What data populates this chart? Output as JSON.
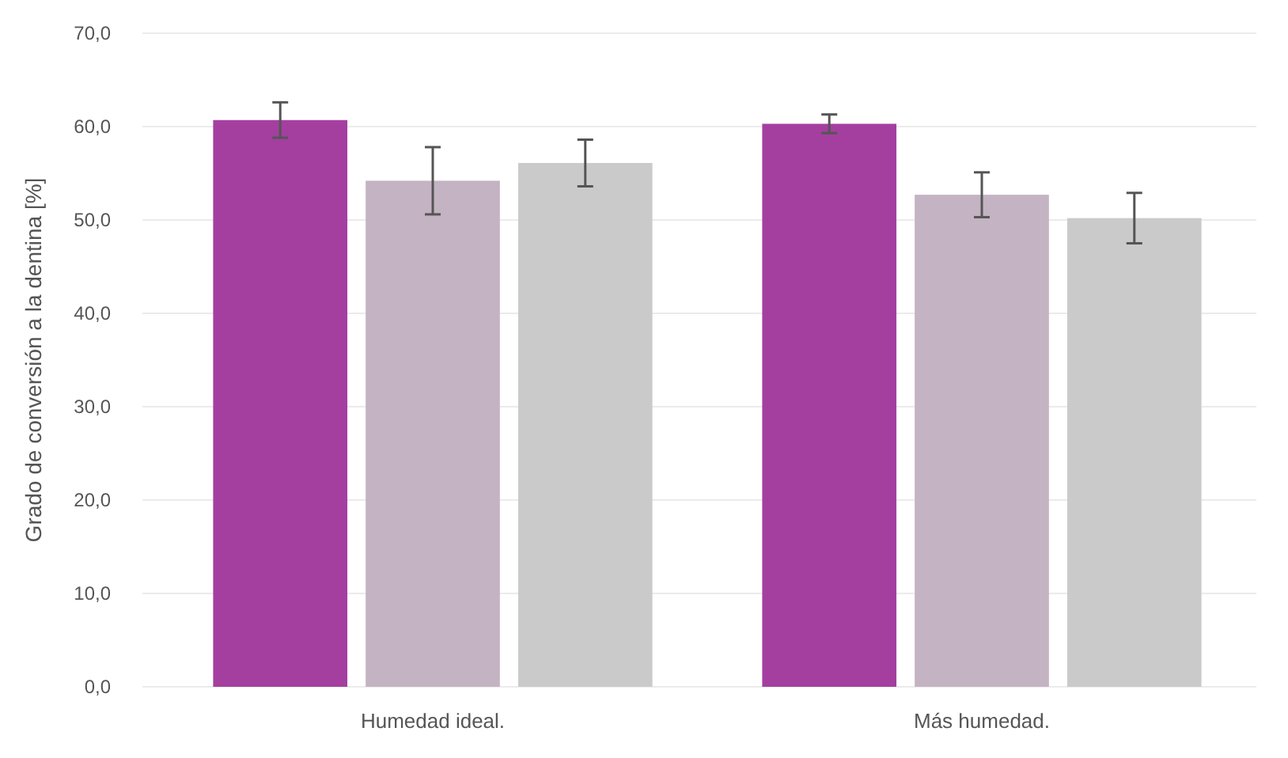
{
  "chart_data": {
    "type": "bar",
    "ylabel": "Grado de conversión a la dentina [%]",
    "categories": [
      "Humedad ideal.",
      "Más humedad."
    ],
    "series": [
      {
        "color": "#a43fa0",
        "values": [
          60.7,
          60.3
        ],
        "errors": [
          1.9,
          1.0
        ]
      },
      {
        "color": "#c4b3c3",
        "values": [
          54.2,
          52.7
        ],
        "errors": [
          3.6,
          2.4
        ]
      },
      {
        "color": "#cacaca",
        "values": [
          56.1,
          50.2
        ],
        "errors": [
          2.5,
          2.7
        ]
      }
    ],
    "ylim": [
      0,
      70
    ],
    "yticks": [
      {
        "value": 0,
        "label": "0,0"
      },
      {
        "value": 10,
        "label": "10,0"
      },
      {
        "value": 20,
        "label": "20,0"
      },
      {
        "value": 30,
        "label": "30,0"
      },
      {
        "value": 40,
        "label": "40,0"
      },
      {
        "value": 50,
        "label": "50,0"
      },
      {
        "value": 60,
        "label": "60,0"
      },
      {
        "value": 70,
        "label": "70,0"
      }
    ],
    "grid": "y"
  }
}
